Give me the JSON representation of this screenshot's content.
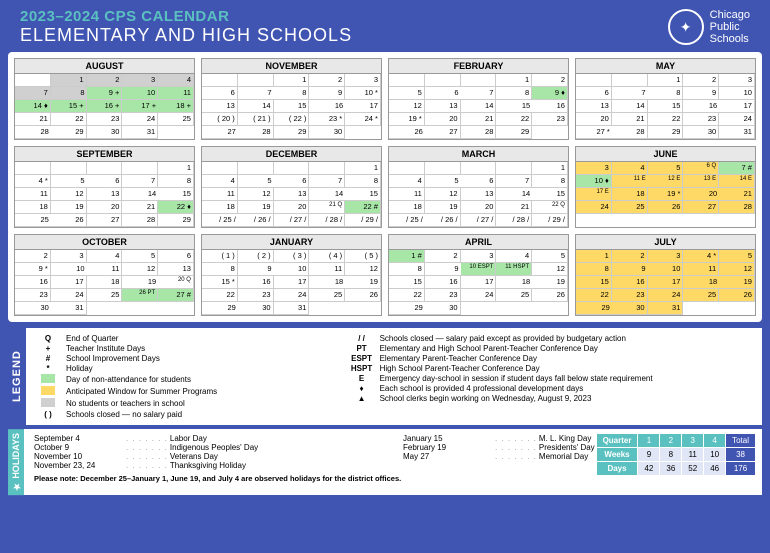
{
  "header": {
    "year": "2023–2024 CPS CALENDAR",
    "sub": "ELEMENTARY AND HIGH SCHOOLS",
    "logo": {
      "line1": "Chicago",
      "line2": "Public",
      "line3": "Schools"
    }
  },
  "months": [
    {
      "name": "AUGUST",
      "startCol": 1,
      "days": 31,
      "marks": {
        "1": {
          "c": "gray"
        },
        "2": {
          "c": "gray"
        },
        "3": {
          "c": "gray"
        },
        "4": {
          "c": "gray"
        },
        "7": {
          "c": "gray"
        },
        "8": {
          "c": "gray"
        },
        "9": {
          "c": "green",
          "s": "+"
        },
        "10": {
          "c": "green"
        },
        "11": {
          "c": "green"
        },
        "14": {
          "c": "green",
          "s": "♦"
        },
        "15": {
          "c": "green",
          "s": "+"
        },
        "16": {
          "c": "green",
          "s": "+"
        },
        "17": {
          "c": "green",
          "s": "+"
        },
        "18": {
          "c": "green",
          "s": "+"
        }
      }
    },
    {
      "name": "NOVEMBER",
      "startCol": 2,
      "days": 30,
      "marks": {
        "10": {
          "s": "*"
        },
        "20": {
          "p": 1
        },
        "21": {
          "p": 1
        },
        "22": {
          "p": 1
        },
        "23": {
          "s": "*"
        },
        "24": {
          "s": "*"
        }
      }
    },
    {
      "name": "FEBRUARY",
      "startCol": 3,
      "days": 29,
      "marks": {
        "9": {
          "c": "green",
          "s": "♦"
        },
        "19": {
          "s": "*"
        }
      }
    },
    {
      "name": "MAY",
      "startCol": 2,
      "days": 31,
      "marks": {
        "27": {
          "s": "*"
        }
      }
    },
    {
      "name": "SEPTEMBER",
      "startCol": 4,
      "days": 30,
      "marks": {
        "4": {
          "s": "*"
        },
        "22": {
          "c": "green",
          "s": "♦"
        }
      }
    },
    {
      "name": "DECEMBER",
      "startCol": 4,
      "days": 31,
      "marks": {
        "21": {
          "t": "Q"
        },
        "22": {
          "c": "green",
          "s": "#"
        },
        "25": {
          "p": 2
        },
        "26": {
          "p": 2
        },
        "27": {
          "p": 2
        },
        "28": {
          "p": 2
        },
        "29": {
          "p": 2
        }
      }
    },
    {
      "name": "MARCH",
      "startCol": 4,
      "days": 31,
      "marks": {
        "22": {
          "t": "Q"
        },
        "25": {
          "p": 2
        },
        "26": {
          "p": 2
        },
        "27": {
          "p": 2
        },
        "28": {
          "p": 2
        },
        "29": {
          "p": 2
        }
      }
    },
    {
      "name": "JUNE",
      "startCol": 5,
      "days": 30,
      "marks": {
        "3": {
          "c": "yellow"
        },
        "4": {
          "c": "yellow"
        },
        "5": {
          "c": "yellow"
        },
        "6": {
          "c": "yellow",
          "t": "Q"
        },
        "7": {
          "c": "green",
          "s": "#"
        },
        "10": {
          "c": "green",
          "s": "♦"
        },
        "11": {
          "c": "yellow",
          "t": "E"
        },
        "12": {
          "c": "yellow",
          "t": "E"
        },
        "13": {
          "c": "yellow",
          "t": "E"
        },
        "14": {
          "c": "yellow",
          "t": "E"
        },
        "17": {
          "c": "yellow",
          "t": "E"
        },
        "18": {
          "c": "yellow"
        },
        "19": {
          "c": "yellow",
          "s": "*"
        },
        "20": {
          "c": "yellow"
        },
        "21": {
          "c": "yellow"
        },
        "24": {
          "c": "yellow"
        },
        "25": {
          "c": "yellow"
        },
        "26": {
          "c": "yellow"
        },
        "27": {
          "c": "yellow"
        },
        "28": {
          "c": "yellow"
        }
      },
      "short": 4
    },
    {
      "name": "OCTOBER",
      "startCol": 6,
      "days": 31,
      "marks": {
        "9": {
          "s": "*"
        },
        "20": {
          "t": "Q"
        },
        "26": {
          "c": "green",
          "t": "PT"
        },
        "27": {
          "c": "green",
          "s": "#"
        }
      }
    },
    {
      "name": "JANUARY",
      "startCol": 0,
      "days": 31,
      "marks": {
        "1": {
          "p": 1
        },
        "2": {
          "p": 1
        },
        "3": {
          "p": 1
        },
        "4": {
          "p": 1
        },
        "5": {
          "p": 1
        },
        "15": {
          "s": "*"
        }
      }
    },
    {
      "name": "APRIL",
      "startCol": 0,
      "days": 30,
      "marks": {
        "1": {
          "c": "green",
          "s": "#"
        },
        "10": {
          "c": "green",
          "t": "ESPT"
        },
        "11": {
          "c": "green",
          "t": "HSPT"
        }
      }
    },
    {
      "name": "JULY",
      "startCol": 0,
      "days": 31,
      "marks": {
        "1": {
          "c": "yellow"
        },
        "2": {
          "c": "yellow"
        },
        "3": {
          "c": "yellow"
        },
        "4": {
          "c": "yellow",
          "s": "*"
        },
        "5": {
          "c": "yellow"
        },
        "8": {
          "c": "yellow"
        },
        "9": {
          "c": "yellow"
        },
        "10": {
          "c": "yellow"
        },
        "11": {
          "c": "yellow"
        },
        "12": {
          "c": "yellow"
        },
        "15": {
          "c": "yellow"
        },
        "16": {
          "c": "yellow"
        },
        "17": {
          "c": "yellow"
        },
        "18": {
          "c": "yellow"
        },
        "19": {
          "c": "yellow"
        },
        "22": {
          "c": "yellow"
        },
        "23": {
          "c": "yellow"
        },
        "24": {
          "c": "yellow"
        },
        "25": {
          "c": "yellow"
        },
        "26": {
          "c": "yellow"
        },
        "29": {
          "c": "yellow"
        },
        "30": {
          "c": "yellow"
        },
        "31": {
          "c": "yellow"
        }
      }
    }
  ],
  "legend": {
    "tab": "LEGEND",
    "left": [
      {
        "sym": "Q",
        "txt": "End of Quarter"
      },
      {
        "sym": "+",
        "txt": "Teacher Institute Days"
      },
      {
        "sym": "#",
        "txt": "School Improvement Days"
      },
      {
        "sym": "*",
        "txt": "Holiday"
      },
      {
        "sw": "green",
        "txt": "Day of non-attendance for students"
      },
      {
        "sw": "yellow",
        "txt": "Anticipated Window for Summer Programs"
      },
      {
        "sw": "gray",
        "txt": "No students or teachers in school"
      },
      {
        "sym": "( )",
        "txt": "Schools closed — no salary paid"
      }
    ],
    "right": [
      {
        "sym": "/ /",
        "txt": "Schools closed — salary paid except as provided by budgetary action"
      },
      {
        "sym": "PT",
        "txt": "Elementary and High School Parent-Teacher Conference Day"
      },
      {
        "sym": "ESPT",
        "txt": "Elementary Parent-Teacher Conference Day"
      },
      {
        "sym": "HSPT",
        "txt": "High School Parent-Teacher Conference Day"
      },
      {
        "sym": "E",
        "txt": "Emergency day-school in session if student days fall below state requirement"
      },
      {
        "sym": "♦",
        "txt": "Each school is provided 4 professional development days"
      },
      {
        "sym": "▲",
        "txt": "School clerks begin working on Wednesday, August 9, 2023"
      }
    ]
  },
  "holidays": {
    "tab": "★ HOLIDAYS",
    "col1": [
      {
        "d": "September 4",
        "n": "Labor Day"
      },
      {
        "d": "October 9",
        "n": "Indigenous Peoples' Day"
      },
      {
        "d": "November 10",
        "n": "Veterans Day"
      },
      {
        "d": "November 23, 24",
        "n": "Thanksgiving Holiday"
      }
    ],
    "col2": [
      {
        "d": "January 15",
        "n": "M. L. King Day"
      },
      {
        "d": "February 19",
        "n": "Presidents' Day"
      },
      {
        "d": "May 27",
        "n": "Memorial Day"
      }
    ],
    "note": "Please note: December 25–January 1, June 19, and July 4 are observed holidays for the district offices."
  },
  "quarters": {
    "headers": [
      "Quarter",
      "1",
      "2",
      "3",
      "4",
      "Total"
    ],
    "rows": [
      {
        "lbl": "Weeks",
        "v": [
          "9",
          "8",
          "11",
          "10"
        ],
        "t": "38"
      },
      {
        "lbl": "Days",
        "v": [
          "42",
          "36",
          "52",
          "46"
        ],
        "t": "176"
      }
    ]
  }
}
